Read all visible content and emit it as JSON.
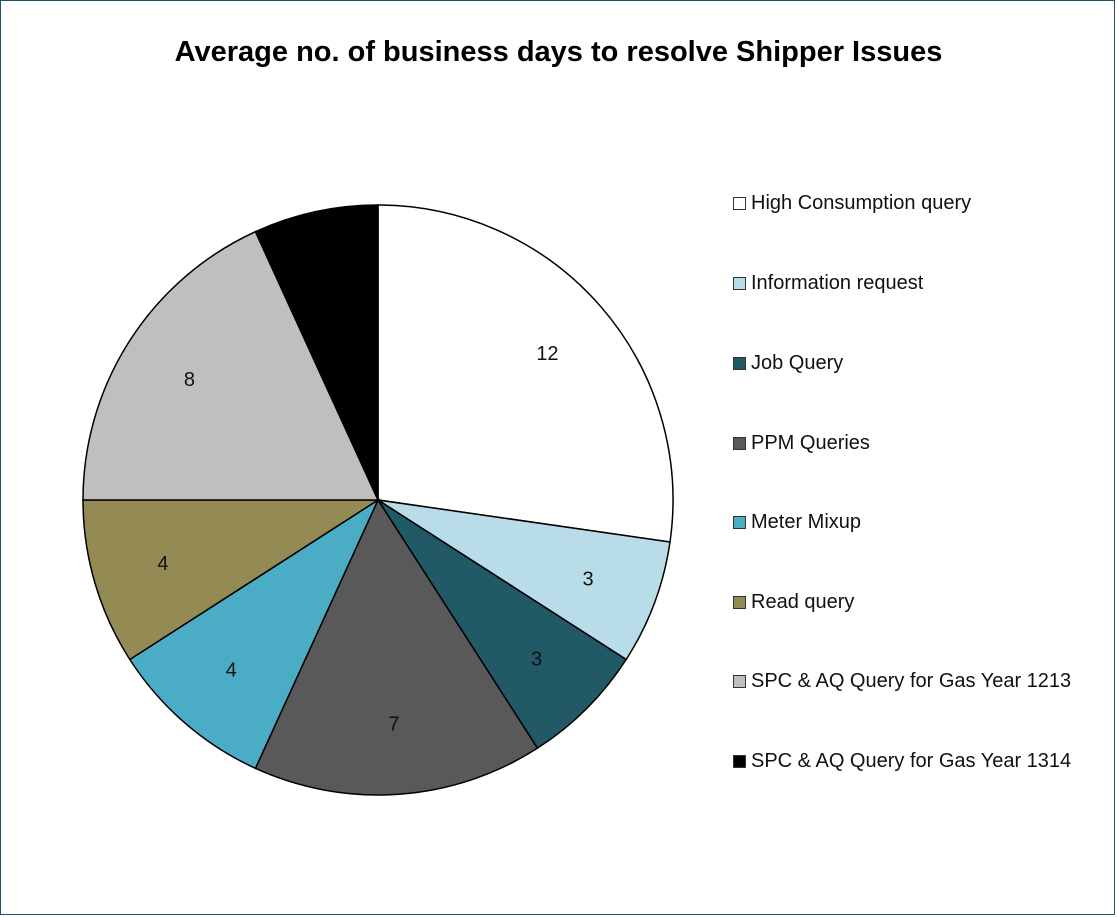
{
  "chart_data": {
    "type": "pie",
    "title": "Average no. of business days to resolve Shipper Issues",
    "categories": [
      "High Consumption query",
      "Information request",
      "Job Query",
      "PPM Queries",
      "Meter Mixup",
      "Read query",
      "SPC & AQ Query for Gas Year 1213",
      "SPC & AQ Query for Gas Year 1314"
    ],
    "values": [
      12,
      3,
      3,
      7,
      4,
      4,
      8,
      3
    ],
    "data_labels": [
      "12",
      "3",
      "3",
      "7",
      "4",
      "4",
      "8",
      ""
    ],
    "colors": [
      "#ffffff",
      "#b8dde8",
      "#215967",
      "#595959",
      "#4bacc6",
      "#948a54",
      "#bfbfbf",
      "#000000"
    ],
    "legend_position": "right",
    "start_angle_deg": 0,
    "direction": "clockwise"
  }
}
